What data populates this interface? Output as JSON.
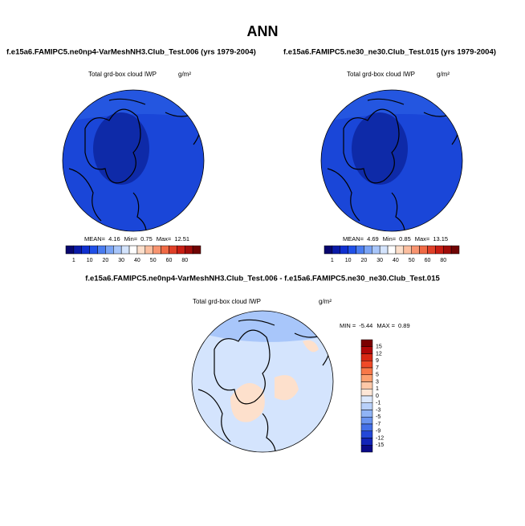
{
  "title": "ANN",
  "panels": [
    {
      "case": "f.e15a6.FAMIPC5.ne0np4-VarMeshNH3.Club_Test.006 (yrs 1979-2004)",
      "variable": "Total grd-box cloud IWP",
      "units": "g/m²",
      "stats": [
        {
          "label": "MEAN=",
          "value": 4.16
        },
        {
          "label": "Min=",
          "value": 0.75
        },
        {
          "label": "Max=",
          "value": 12.51
        }
      ],
      "colorbar": {
        "labels": [
          1,
          10,
          20,
          30,
          40,
          50,
          60,
          80
        ]
      }
    },
    {
      "case": "f.e15a6.FAMIPC5.ne30_ne30.Club_Test.015 (yrs 1979-2004)",
      "variable": "Total grd-box cloud IWP",
      "units": "g/m²",
      "stats": [
        {
          "label": "MEAN=",
          "value": 4.69
        },
        {
          "label": "Min=",
          "value": 0.85
        },
        {
          "label": "Max=",
          "value": 13.15
        }
      ],
      "colorbar": {
        "labels": [
          1,
          10,
          20,
          30,
          40,
          50,
          60,
          80
        ]
      }
    },
    {
      "case": "f.e15a6.FAMIPC5.ne0np4-VarMeshNH3.Club_Test.006 - f.e15a6.FAMIPC5.ne30_ne30.Club_Test.015",
      "variable": "Total grd-box cloud IWP",
      "units": "g/m²",
      "stats": [
        {
          "label": "MIN =",
          "value": -5.44
        },
        {
          "label": "MAX =",
          "value": 0.89
        }
      ],
      "colorbar": {
        "labels": [
          15,
          12,
          9,
          7,
          5,
          3,
          1,
          0,
          -1,
          -3,
          -5,
          -7,
          -9,
          -12,
          -15
        ]
      }
    }
  ]
}
